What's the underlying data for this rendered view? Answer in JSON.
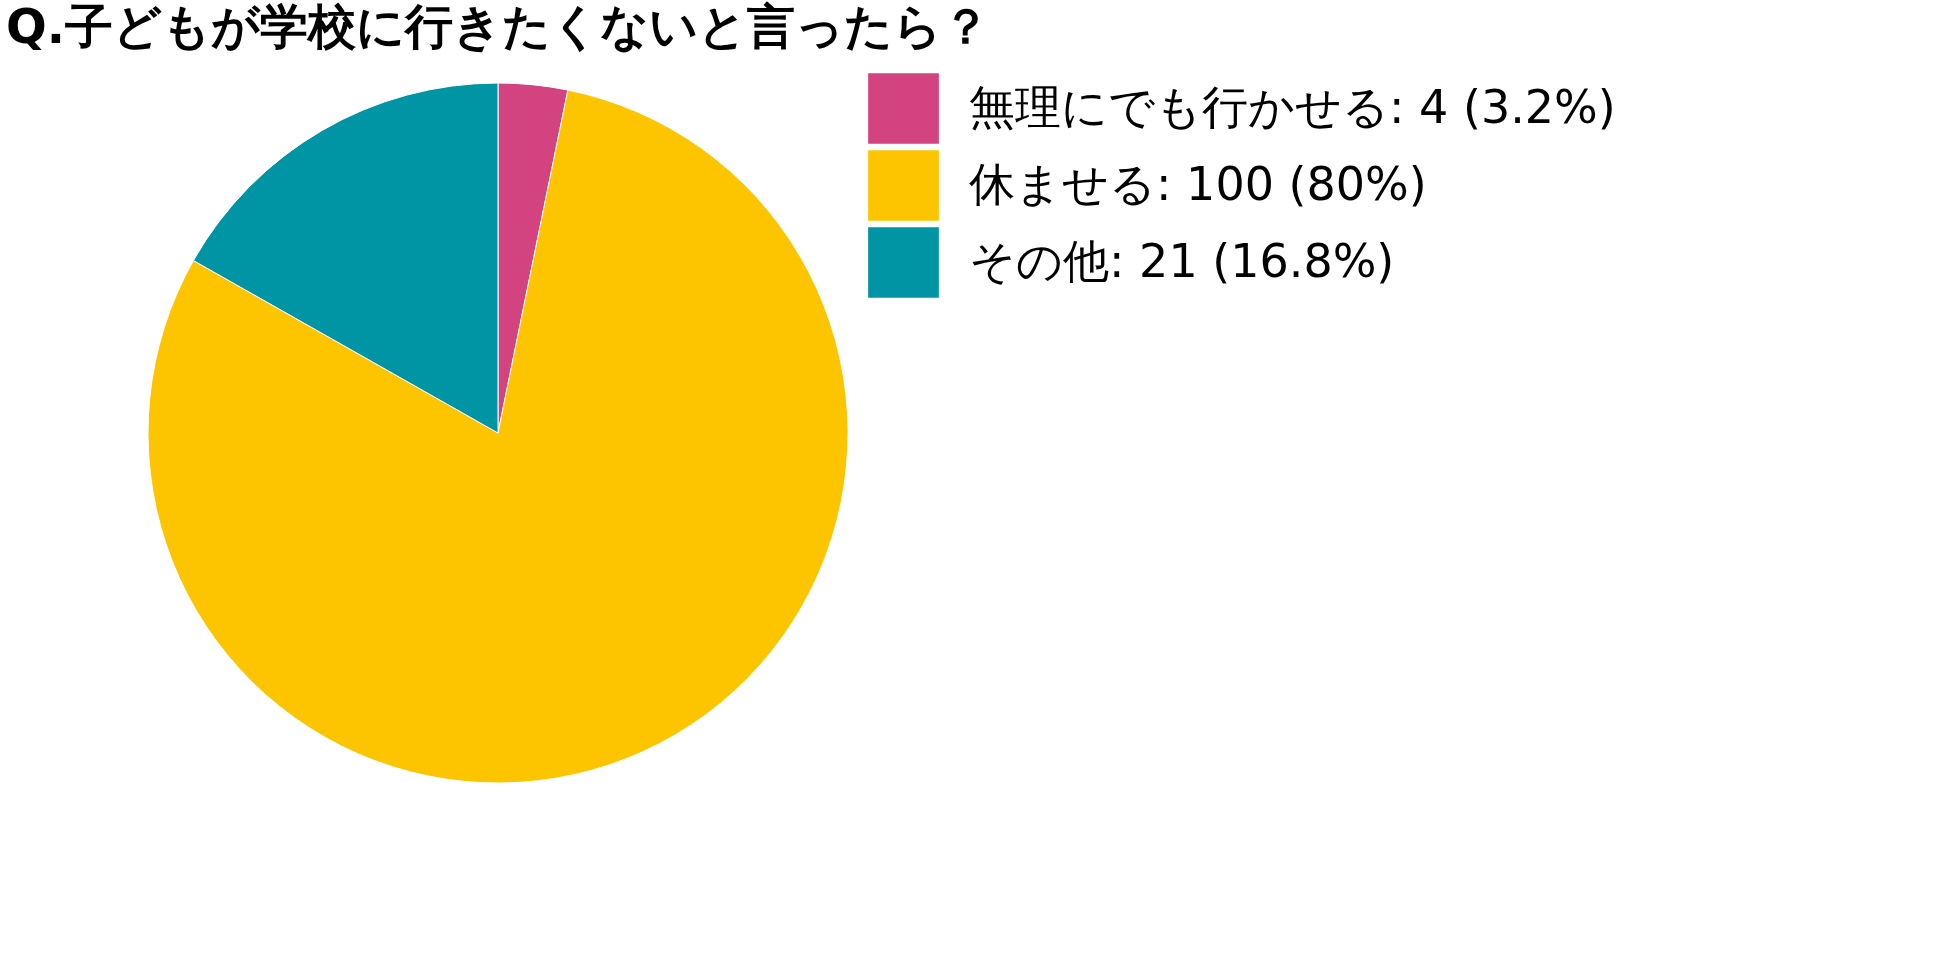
{
  "chart_data": {
    "type": "pie",
    "title": "Q.子どもが学校に行きたくないと言ったら？",
    "categories": [
      "無理にでも行かせる",
      "休ませる",
      "その他"
    ],
    "values": [
      4,
      100,
      21
    ],
    "value_labels": [
      "4 (3.2%)",
      "100 (80%)",
      "21 (16.8%)"
    ],
    "colors": [
      "#d3437f",
      "#fdc400",
      "#0095a4"
    ],
    "legend": "top right"
  }
}
